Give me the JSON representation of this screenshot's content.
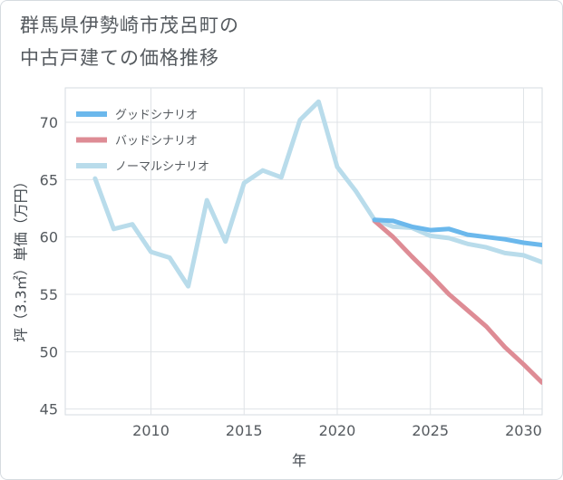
{
  "title_lines": [
    "群馬県伊勢崎市茂呂町の",
    "中古戸建ての価格推移"
  ],
  "chart_data": {
    "type": "line",
    "title": "群馬県伊勢崎市茂呂町の中古戸建ての価格推移",
    "xlabel": "年",
    "ylabel": "坪（3.3㎡）単価（万円）",
    "xlim": [
      2005.4,
      2031
    ],
    "ylim": [
      44.5,
      73
    ],
    "xticks": [
      2010,
      2015,
      2020,
      2025,
      2030
    ],
    "yticks": [
      45,
      50,
      55,
      60,
      65,
      70
    ],
    "legend_position": "top-left",
    "series": [
      {
        "name": "グッドシナリオ",
        "color": "#6bb8ec",
        "x": [
          2022,
          2023,
          2024,
          2025,
          2026,
          2027,
          2028,
          2029,
          2030,
          2031
        ],
        "y": [
          61.5,
          61.4,
          60.9,
          60.6,
          60.7,
          60.2,
          60.0,
          59.8,
          59.5,
          59.3
        ]
      },
      {
        "name": "バッドシナリオ",
        "color": "#de8c95",
        "x": [
          2022,
          2023,
          2024,
          2025,
          2026,
          2027,
          2028,
          2029,
          2030,
          2031
        ],
        "y": [
          61.4,
          60.0,
          58.3,
          56.7,
          55.0,
          53.6,
          52.2,
          50.4,
          48.9,
          47.3
        ]
      },
      {
        "name": "ノーマルシナリオ",
        "color": "#b9dceb",
        "x": [
          2007,
          2008,
          2009,
          2010,
          2011,
          2012,
          2013,
          2014,
          2015,
          2016,
          2017,
          2018,
          2019,
          2020,
          2021,
          2022,
          2023,
          2024,
          2025,
          2026,
          2027,
          2028,
          2029,
          2030,
          2031
        ],
        "y": [
          65.1,
          60.7,
          61.1,
          58.7,
          58.2,
          55.7,
          63.2,
          59.6,
          64.7,
          65.8,
          65.2,
          70.2,
          71.8,
          66.1,
          64.0,
          61.5,
          60.9,
          60.8,
          60.1,
          59.9,
          59.4,
          59.1,
          58.6,
          58.4,
          57.8
        ]
      }
    ]
  }
}
